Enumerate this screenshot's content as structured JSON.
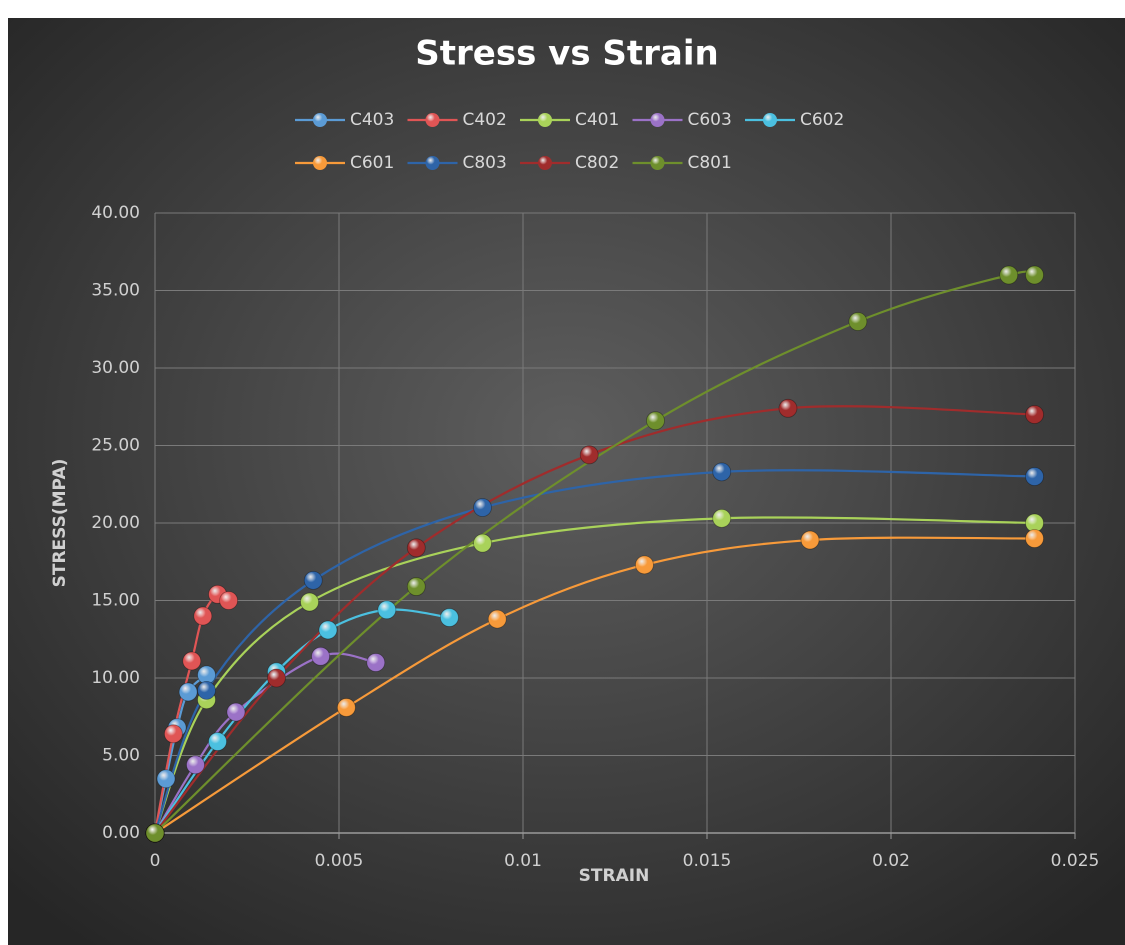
{
  "chart_data": {
    "type": "scatter",
    "title": "Stress vs Strain",
    "x_label": "STRAIN",
    "y_label": "STRESS(MPA)",
    "xlim": [
      0,
      0.025
    ],
    "xticks": [
      0,
      0.005,
      0.01,
      0.015,
      0.02,
      0.025
    ],
    "ylim": [
      0,
      40
    ],
    "yticks": [
      {
        "value": 0,
        "label": "0.00"
      },
      {
        "value": 5,
        "label": "5.00"
      },
      {
        "value": 10,
        "label": "10.00"
      },
      {
        "value": 15,
        "label": "15.00"
      },
      {
        "value": 20,
        "label": "20.00"
      },
      {
        "value": 25,
        "label": "25.00"
      },
      {
        "value": 30,
        "label": "30.00"
      },
      {
        "value": 35,
        "label": "35.00"
      },
      {
        "value": 40,
        "label": "40.00"
      }
    ],
    "grid": true,
    "legend": "top",
    "series": [
      {
        "name": "C403",
        "color": "#5b9bd5",
        "x": [
          0,
          0.0003,
          0.0006,
          0.0009,
          0.0014
        ],
        "values": [
          0,
          3.5,
          6.8,
          9.1,
          10.2
        ]
      },
      {
        "name": "C402",
        "color": "#e05555",
        "x": [
          0,
          0.0005,
          0.001,
          0.0013,
          0.0017,
          0.002
        ],
        "values": [
          0,
          6.4,
          11.1,
          14.0,
          15.4,
          15.0
        ]
      },
      {
        "name": "C401",
        "color": "#a9d25a",
        "x": [
          0,
          0.0014,
          0.0042,
          0.0089,
          0.0154,
          0.0239
        ],
        "values": [
          0,
          8.6,
          14.9,
          18.7,
          20.3,
          20.0
        ]
      },
      {
        "name": "C603",
        "color": "#9b72c7",
        "x": [
          0,
          0.0011,
          0.0022,
          0.0045,
          0.006
        ],
        "values": [
          0,
          4.4,
          7.8,
          11.4,
          11.0
        ]
      },
      {
        "name": "C602",
        "color": "#4bc0e0",
        "x": [
          0,
          0.0017,
          0.0033,
          0.0047,
          0.0063,
          0.008
        ],
        "values": [
          0,
          5.9,
          10.4,
          13.1,
          14.4,
          13.9
        ]
      },
      {
        "name": "C601",
        "color": "#f79a3a",
        "x": [
          0,
          0.0052,
          0.0093,
          0.0133,
          0.0178,
          0.0239
        ],
        "values": [
          0,
          8.1,
          13.8,
          17.3,
          18.9,
          19.0
        ]
      },
      {
        "name": "C803",
        "color": "#2e64a8",
        "x": [
          0,
          0.0014,
          0.0043,
          0.0089,
          0.0154,
          0.0239
        ],
        "values": [
          0,
          9.2,
          16.3,
          21.0,
          23.3,
          23.0
        ]
      },
      {
        "name": "C802",
        "color": "#a02c2c",
        "x": [
          0,
          0.0033,
          0.0071,
          0.0118,
          0.0172,
          0.0239
        ],
        "values": [
          0,
          10.0,
          18.4,
          24.4,
          27.4,
          27.0
        ]
      },
      {
        "name": "C801",
        "color": "#6e8f2c",
        "x": [
          0,
          0.0071,
          0.0136,
          0.0191,
          0.0232,
          0.0239
        ],
        "values": [
          0,
          15.9,
          26.6,
          33.0,
          36.0,
          36.0
        ]
      }
    ]
  }
}
